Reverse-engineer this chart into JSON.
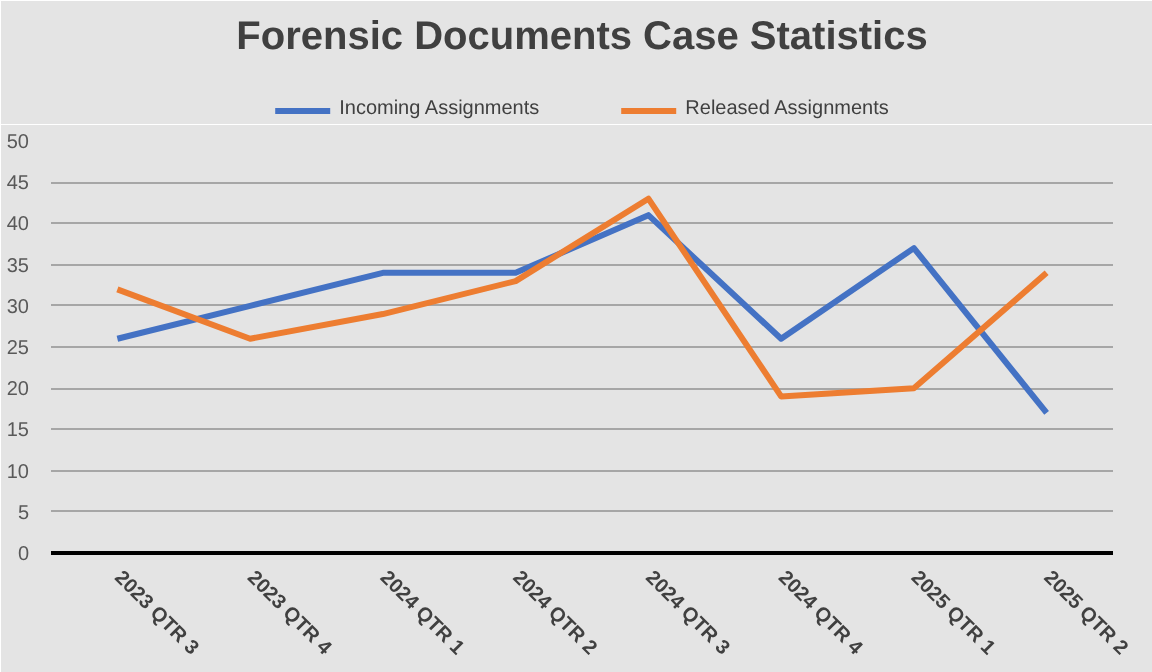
{
  "chart_data": {
    "type": "line",
    "title": "Forensic Documents Case Statistics",
    "categories": [
      "2023 QTR 3",
      "2023 QTR 4",
      "2024 QTR 1",
      "2024 QTR 2",
      "2024 QTR 3",
      "2024 QTR 4",
      "2025 QTR 1",
      "2025 QTR 2"
    ],
    "series": [
      {
        "name": "Incoming Assignments",
        "color": "#4472c4",
        "values": [
          26,
          30,
          34,
          34,
          41,
          26,
          37,
          17
        ]
      },
      {
        "name": "Released Assignments",
        "color": "#ed7d31",
        "values": [
          32,
          26,
          29,
          33,
          43,
          19,
          20,
          34
        ]
      }
    ],
    "ylim": [
      0,
      50
    ],
    "yticks": [
      0,
      5,
      10,
      15,
      20,
      25,
      30,
      35,
      40,
      45,
      50
    ],
    "grid": "y",
    "legend": "top",
    "marker": "none",
    "line_style": "solid"
  }
}
